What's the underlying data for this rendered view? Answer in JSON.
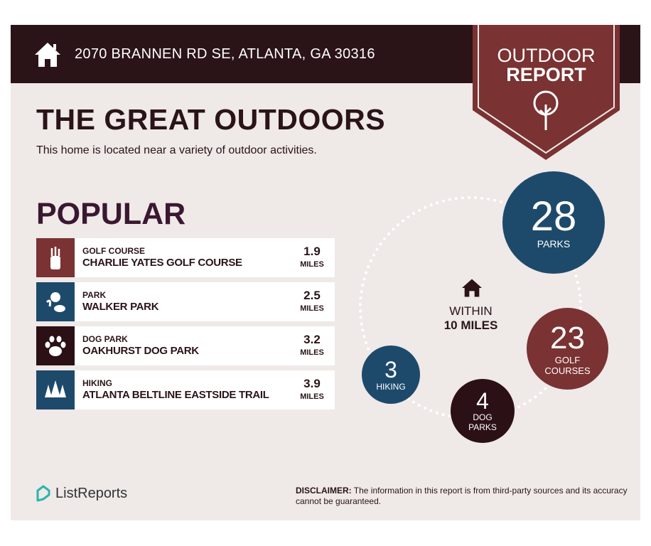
{
  "header": {
    "address": "2070 BRANNEN RD SE, ATLANTA, GA 30316",
    "icon": "home-icon"
  },
  "badge": {
    "line1": "OUTDOOR",
    "line2": "REPORT",
    "icon": "tree-icon"
  },
  "title": "THE GREAT OUTDOORS",
  "subtitle": "This home is located near a variety of outdoor activities.",
  "popular": {
    "heading": "POPULAR",
    "items": [
      {
        "category": "GOLF COURSE",
        "name": "CHARLIE YATES GOLF COURSE",
        "distance": "1.9",
        "unit": "MILES",
        "color": "#7a3232",
        "icon": "golf-bag-icon"
      },
      {
        "category": "PARK",
        "name": "WALKER PARK",
        "distance": "2.5",
        "unit": "MILES",
        "color": "#1d4a6b",
        "icon": "park-icon"
      },
      {
        "category": "DOG PARK",
        "name": "OAKHURST DOG PARK",
        "distance": "3.2",
        "unit": "MILES",
        "color": "#2b1016",
        "icon": "paw-icon"
      },
      {
        "category": "HIKING",
        "name": "ATLANTA BELTLINE EASTSIDE TRAIL",
        "distance": "3.9",
        "unit": "MILES",
        "color": "#1d4a6b",
        "icon": "pine-trees-icon"
      }
    ]
  },
  "within": {
    "line1": "WITHIN",
    "line2": "10 MILES"
  },
  "counts": [
    {
      "value": "28",
      "label": "PARKS",
      "color": "#1d4a6b"
    },
    {
      "value": "23",
      "label1": "GOLF",
      "label2": "COURSES",
      "color": "#7a3232"
    },
    {
      "value": "4",
      "label1": "DOG",
      "label2": "PARKS",
      "color": "#2b1016"
    },
    {
      "value": "3",
      "label": "HIKING",
      "color": "#1d4a6b"
    }
  ],
  "footer": {
    "logo": "ListReports",
    "disclaimer_label": "DISCLAIMER:",
    "disclaimer": " The information in this report is from third-party sources and its accuracy cannot be guaranteed."
  }
}
